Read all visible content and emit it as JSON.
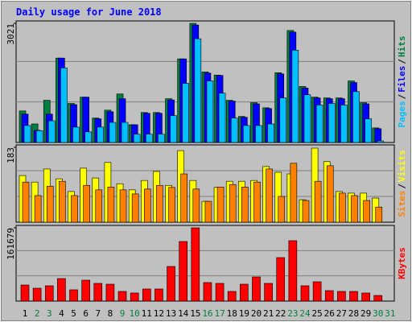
{
  "legend_separator": "/",
  "chart_data": [
    {
      "type": "bar",
      "title": "Daily usage for June 2018",
      "categories": [
        1,
        2,
        3,
        4,
        5,
        6,
        7,
        8,
        9,
        10,
        11,
        12,
        13,
        14,
        15,
        16,
        17,
        18,
        19,
        20,
        21,
        22,
        23,
        24,
        25,
        26,
        27,
        28,
        29,
        30,
        31
      ],
      "ylim": [
        0,
        3021
      ],
      "yticks": [
        3021
      ],
      "series": [
        {
          "name": "Hits",
          "color": "#008040",
          "values": [
            800,
            470,
            1070,
            2140,
            990,
            1150,
            620,
            820,
            1230,
            450,
            760,
            760,
            1110,
            2120,
            3021,
            1790,
            1710,
            1070,
            660,
            1010,
            880,
            1770,
            2840,
            1420,
            1150,
            1130,
            1130,
            1560,
            1010,
            370,
            0
          ]
        },
        {
          "name": "Files",
          "color": "#0000ff",
          "values": [
            720,
            310,
            720,
            2140,
            960,
            1150,
            600,
            780,
            1110,
            450,
            740,
            740,
            1080,
            2120,
            2980,
            1760,
            1700,
            1050,
            640,
            980,
            860,
            1740,
            2800,
            1380,
            1130,
            1110,
            1110,
            1520,
            980,
            350,
            0
          ]
        },
        {
          "name": "Pages",
          "color": "#00c0ff",
          "values": [
            430,
            300,
            550,
            1890,
            390,
            270,
            390,
            510,
            510,
            210,
            210,
            210,
            680,
            1500,
            2630,
            1560,
            1250,
            620,
            430,
            430,
            470,
            1130,
            2340,
            1210,
            950,
            990,
            950,
            1290,
            600,
            40,
            0
          ]
        }
      ]
    },
    {
      "type": "bar",
      "categories": [
        1,
        2,
        3,
        4,
        5,
        6,
        7,
        8,
        9,
        10,
        11,
        12,
        13,
        14,
        15,
        16,
        17,
        18,
        19,
        20,
        21,
        22,
        23,
        24,
        25,
        26,
        27,
        28,
        29,
        30,
        31
      ],
      "ylim": [
        0,
        183
      ],
      "yticks": [
        183
      ],
      "series": [
        {
          "name": "Visits",
          "color": "#ffff00",
          "values": [
            114,
            98,
            130,
            106,
            75,
            132,
            108,
            146,
            94,
            79,
            102,
            124,
            90,
            175,
            102,
            51,
            85,
            100,
            100,
            102,
            136,
            122,
            118,
            55,
            181,
            148,
            75,
            71,
            71,
            59,
            0
          ]
        },
        {
          "name": "Sites",
          "color": "#ff8000",
          "values": [
            98,
            65,
            88,
            100,
            65,
            90,
            79,
            86,
            79,
            69,
            81,
            90,
            85,
            118,
            81,
            51,
            86,
            92,
            86,
            98,
            130,
            63,
            144,
            53,
            100,
            138,
            71,
            65,
            53,
            37,
            0
          ]
        }
      ]
    },
    {
      "type": "bar",
      "categories": [
        1,
        2,
        3,
        4,
        5,
        6,
        7,
        8,
        9,
        10,
        11,
        12,
        13,
        14,
        15,
        16,
        17,
        18,
        19,
        20,
        21,
        22,
        23,
        24,
        25,
        26,
        27,
        28,
        29,
        30,
        31
      ],
      "category_colors": [
        "#000000",
        "#008040",
        "#008040",
        "#000000",
        "#000000",
        "#000000",
        "#000000",
        "#000000",
        "#008040",
        "#008040",
        "#000000",
        "#000000",
        "#000000",
        "#000000",
        "#000000",
        "#008040",
        "#008040",
        "#000000",
        "#000000",
        "#000000",
        "#000000",
        "#000000",
        "#008040",
        "#008040",
        "#000000",
        "#000000",
        "#000000",
        "#000000",
        "#000000",
        "#008040",
        "#008040"
      ],
      "ylim": [
        0,
        161679
      ],
      "yticks": [
        161679
      ],
      "series": [
        {
          "name": "KBytes",
          "color": "#ff0000",
          "values": [
            35500,
            28400,
            33800,
            49700,
            24900,
            46200,
            39100,
            37300,
            21300,
            17800,
            26700,
            26700,
            76400,
            131500,
            161679,
            40900,
            39100,
            21300,
            37300,
            53300,
            39100,
            96000,
            133300,
            33800,
            42600,
            23100,
            21300,
            21300,
            17800,
            12400,
            0
          ]
        }
      ]
    }
  ]
}
